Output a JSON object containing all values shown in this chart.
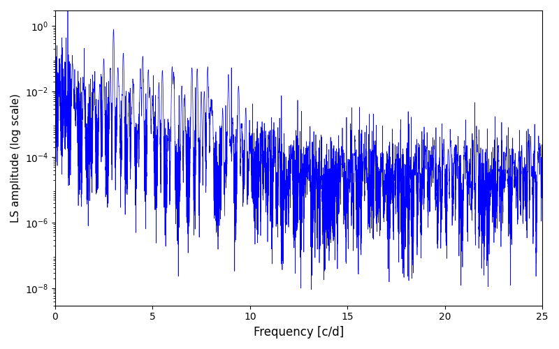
{
  "title": "",
  "xlabel": "Frequency [c/d]",
  "ylabel": "LS amplitude (log scale)",
  "xlim": [
    0,
    25
  ],
  "ylim": [
    3e-09,
    3
  ],
  "line_color": "#0000FF",
  "line_width": 0.5,
  "yscale": "log",
  "figsize": [
    8.0,
    5.0
  ],
  "dpi": 100,
  "freq_max": 25.0,
  "n_points": 8000,
  "seed": 42
}
